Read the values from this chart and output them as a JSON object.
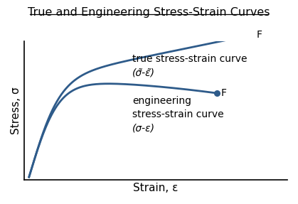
{
  "title": "True and Engineering Stress-Strain Curves",
  "xlabel": "Strain, ε",
  "ylabel": "Stress, σ",
  "curve_color": "#2E5B8A",
  "curve_linewidth": 2.0,
  "background_color": "#ffffff",
  "true_label_line1": "true stress-strain curve",
  "true_label_line2": "(σ̃-ε̃)",
  "eng_label_line1": "engineering",
  "eng_label_line2": "stress-strain curve",
  "eng_label_line3": "(σ-ε)",
  "fracture_label": "F",
  "title_fontsize": 11.5,
  "axis_label_fontsize": 11,
  "annotation_fontsize": 10
}
